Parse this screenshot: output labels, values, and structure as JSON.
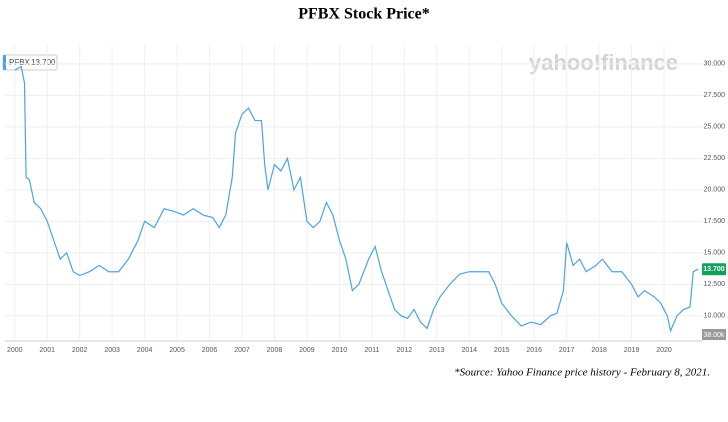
{
  "chart_data": {
    "type": "line",
    "title": "PFBX Stock Price*",
    "ticker": "PFBX",
    "last_price": {
      "value": 13.7,
      "label": "13.700"
    },
    "watermark": "yahoo!finance",
    "volume_label": "38.00k",
    "source_note": "*Source: Yahoo Finance price history - February 8, 2021.",
    "xlim": [
      1999.7,
      2021.2
    ],
    "xticks": [
      2000,
      2001,
      2002,
      2003,
      2004,
      2005,
      2006,
      2007,
      2008,
      2009,
      2010,
      2011,
      2012,
      2013,
      2014,
      2015,
      2016,
      2017,
      2018,
      2019,
      2020
    ],
    "ylim": [
      8,
      31.5
    ],
    "yticks": [
      {
        "value": 10,
        "label": "10.000"
      },
      {
        "value": 12.5,
        "label": "12.500"
      },
      {
        "value": 15,
        "label": "15.000"
      },
      {
        "value": 17.5,
        "label": "17.500"
      },
      {
        "value": 20,
        "label": "20.000"
      },
      {
        "value": 22.5,
        "label": "22.500"
      },
      {
        "value": 25,
        "label": "25.000"
      },
      {
        "value": 27.5,
        "label": "27.500"
      },
      {
        "value": 30,
        "label": "30.000"
      }
    ],
    "grid": true,
    "series": [
      {
        "name": "PFBX",
        "color": "#4aa3e8",
        "x": [
          2000.0,
          2000.2,
          2000.3,
          2000.35,
          2000.45,
          2000.6,
          2000.8,
          2001.0,
          2001.2,
          2001.4,
          2001.6,
          2001.8,
          2002.0,
          2002.3,
          2002.6,
          2002.9,
          2003.2,
          2003.5,
          2003.8,
          2004.0,
          2004.3,
          2004.6,
          2004.9,
          2005.2,
          2005.5,
          2005.8,
          2006.1,
          2006.3,
          2006.5,
          2006.7,
          2006.8,
          2007.0,
          2007.2,
          2007.4,
          2007.6,
          2007.7,
          2007.8,
          2008.0,
          2008.2,
          2008.4,
          2008.6,
          2008.8,
          2009.0,
          2009.2,
          2009.4,
          2009.6,
          2009.8,
          2010.0,
          2010.2,
          2010.4,
          2010.6,
          2010.9,
          2011.1,
          2011.3,
          2011.5,
          2011.7,
          2011.9,
          2012.1,
          2012.3,
          2012.5,
          2012.7,
          2012.9,
          2013.1,
          2013.4,
          2013.7,
          2014.0,
          2014.3,
          2014.6,
          2014.8,
          2015.0,
          2015.3,
          2015.6,
          2015.9,
          2016.2,
          2016.5,
          2016.7,
          2016.9,
          2017.0,
          2017.2,
          2017.4,
          2017.6,
          2017.9,
          2018.1,
          2018.4,
          2018.7,
          2019.0,
          2019.2,
          2019.4,
          2019.7,
          2019.9,
          2020.1,
          2020.2,
          2020.4,
          2020.6,
          2020.8,
          2020.9,
          2021.05
        ],
        "values": [
          29.5,
          29.8,
          28.5,
          21,
          20.8,
          19,
          18.5,
          17.5,
          16,
          14.5,
          15,
          13.5,
          13.2,
          13.5,
          14,
          13.5,
          13.5,
          14.5,
          16,
          17.5,
          17,
          18.5,
          18.3,
          18,
          18.5,
          18,
          17.8,
          17,
          18,
          21,
          24.5,
          26,
          26.5,
          25.5,
          25.5,
          22,
          20,
          22,
          21.5,
          22.5,
          20,
          21,
          17.5,
          17,
          17.5,
          19,
          18,
          16,
          14.5,
          12,
          12.5,
          14.5,
          15.5,
          13.5,
          12,
          10.5,
          10,
          9.8,
          10.5,
          9.5,
          9,
          10.5,
          11.5,
          12.5,
          13.3,
          13.5,
          13.5,
          13.5,
          12.5,
          11,
          10,
          9.2,
          9.5,
          9.3,
          10,
          10.2,
          12,
          15.8,
          14,
          14.5,
          13.5,
          14,
          14.5,
          13.5,
          13.5,
          12.5,
          11.5,
          12,
          11.5,
          11,
          10,
          8.8,
          10,
          10.5,
          10.7,
          13.5,
          13.7
        ]
      }
    ]
  }
}
